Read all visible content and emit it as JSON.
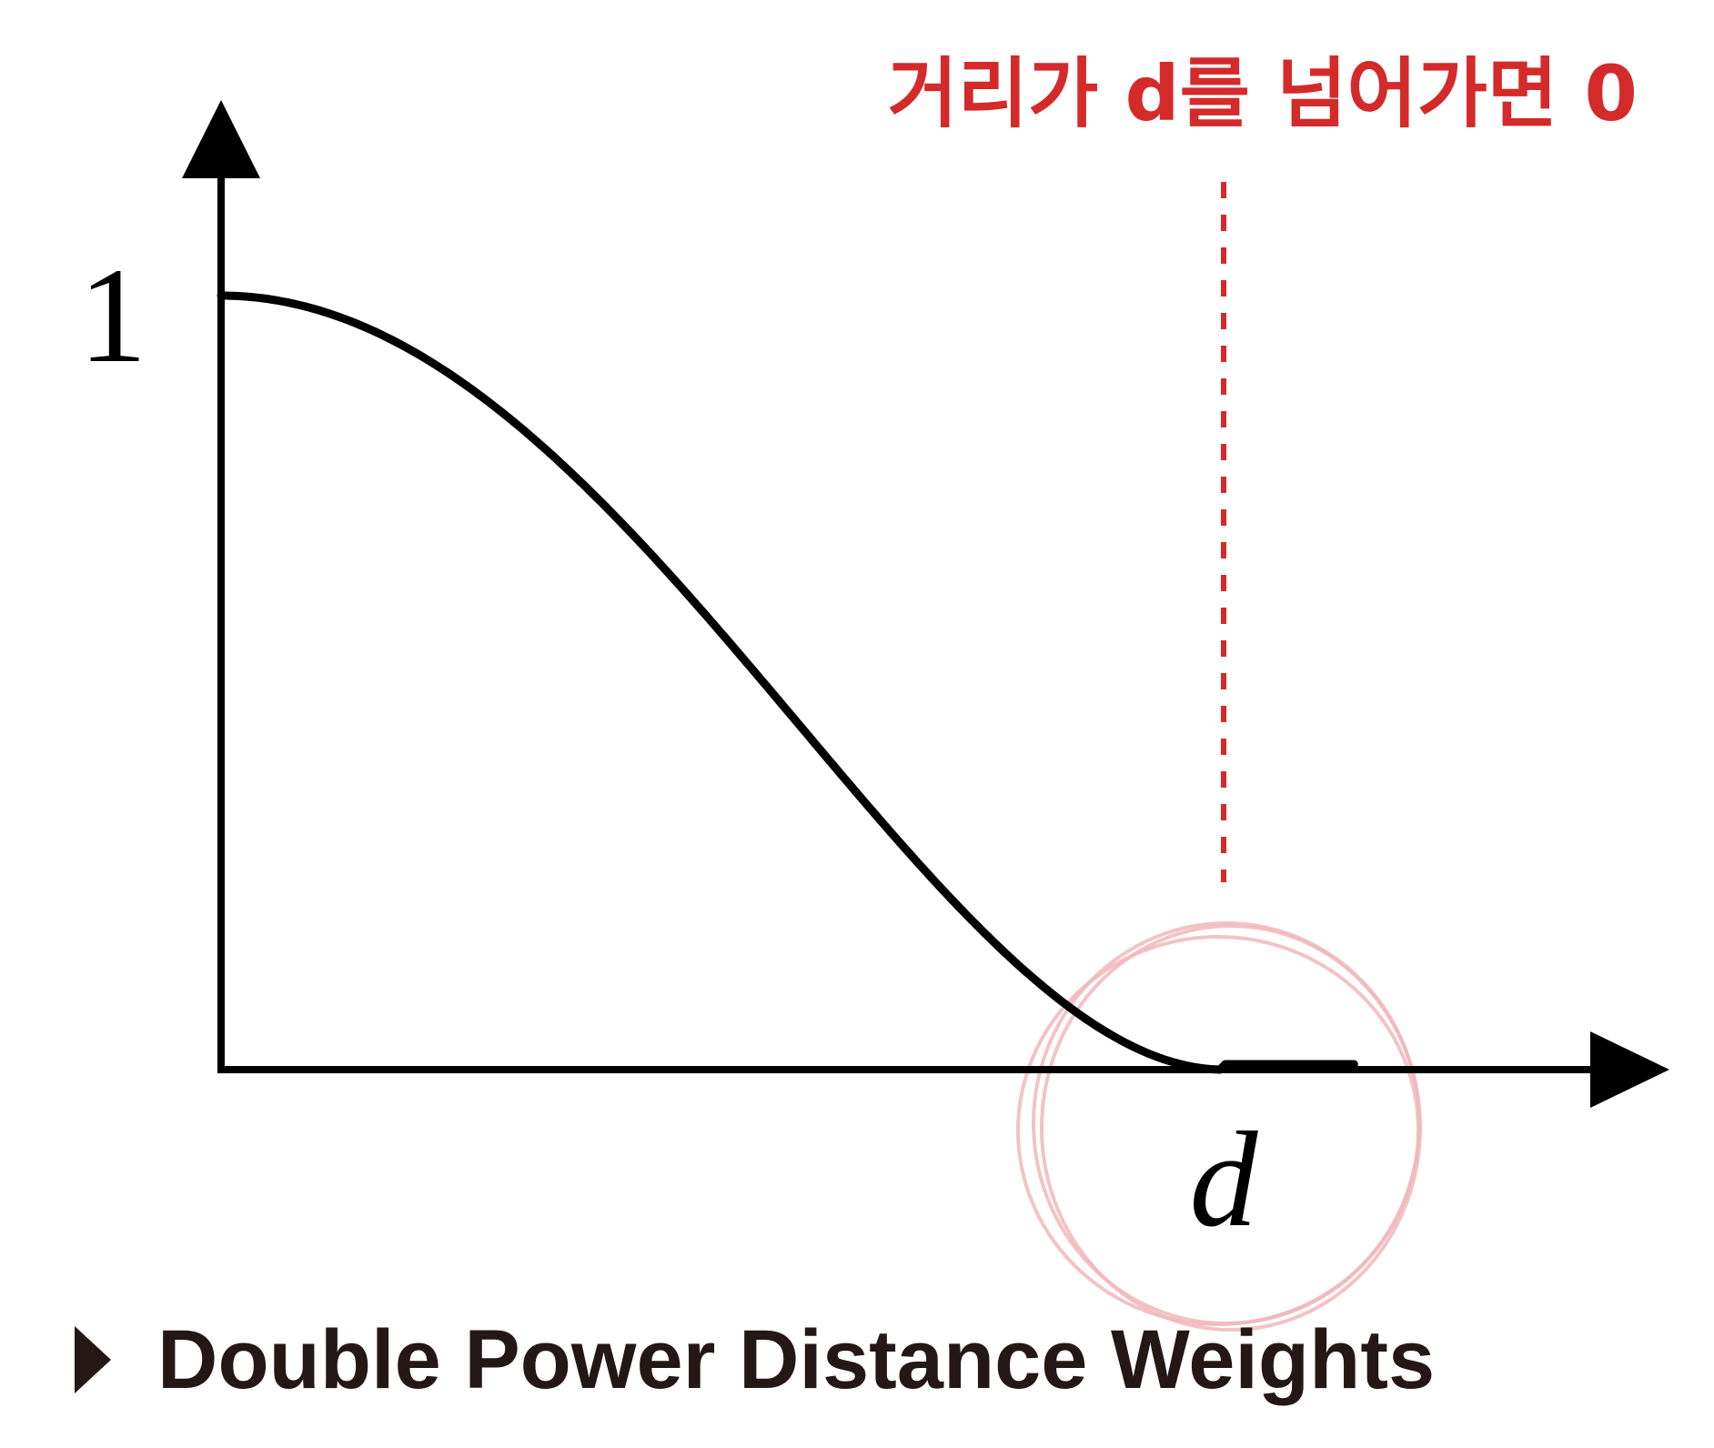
{
  "chart_data": {
    "type": "line",
    "y_tick_label": "1",
    "x_tick_label": "d",
    "series": [
      {
        "x": [
          0,
          0.1,
          0.2,
          0.3,
          0.4,
          0.5,
          0.6,
          0.7,
          0.8,
          0.9,
          1.0,
          1.1,
          1.2
        ],
        "y": [
          1,
          0.9801,
          0.9216,
          0.8281,
          0.7056,
          0.5625,
          0.4096,
          0.2601,
          0.1296,
          0.0361,
          0,
          0,
          0
        ]
      }
    ],
    "xlim": [
      0,
      1.2
    ],
    "ylim": [
      0,
      1
    ],
    "cutoff_x": 1.0
  },
  "annotation": {
    "text": "거리가 d를 넘어가면 0",
    "color": "#d42a2a",
    "circle_color": "#f0b8bc"
  },
  "caption": {
    "text": "Double Power Distance Weights",
    "color": "#231815"
  }
}
